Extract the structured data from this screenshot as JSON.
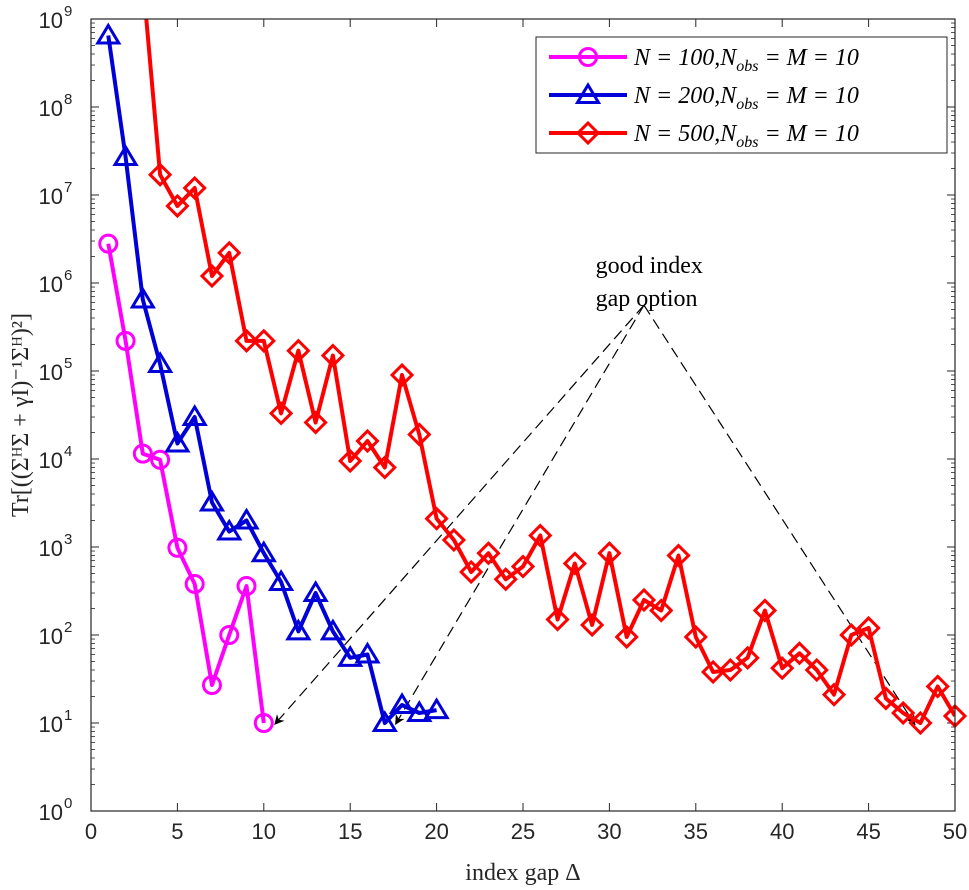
{
  "chart_data": {
    "type": "line",
    "xlabel": "index gap Δ",
    "ylabel": "Tr[((ΣᴴΣ + γI)⁻¹Σᴴ)²]",
    "xlim": [
      0,
      50
    ],
    "ylim": [
      1,
      1000000000
    ],
    "yscale": "log",
    "xticks": [
      0,
      5,
      10,
      15,
      20,
      25,
      30,
      35,
      40,
      45,
      50
    ],
    "xtick_labels": [
      "0",
      "5",
      "10",
      "15",
      "20",
      "25",
      "30",
      "35",
      "40",
      "45",
      "50"
    ],
    "yticks": [
      {
        "value": 1,
        "base": "10",
        "exp": "0"
      },
      {
        "value": 10,
        "base": "10",
        "exp": "1"
      },
      {
        "value": 100,
        "base": "10",
        "exp": "2"
      },
      {
        "value": 1000,
        "base": "10",
        "exp": "3"
      },
      {
        "value": 10000,
        "base": "10",
        "exp": "4"
      },
      {
        "value": 100000,
        "base": "10",
        "exp": "5"
      },
      {
        "value": 1000000,
        "base": "10",
        "exp": "6"
      },
      {
        "value": 10000000,
        "base": "10",
        "exp": "7"
      },
      {
        "value": 100000000,
        "base": "10",
        "exp": "8"
      },
      {
        "value": 1000000000,
        "base": "10",
        "exp": "9"
      }
    ],
    "legend_position": "top-right",
    "series": [
      {
        "name": "N = 100,Nobs = M = 10",
        "label_main": "N = 100,N",
        "label_sub": "obs",
        "label_tail": " = M = 10",
        "color": "#FF00FF",
        "marker": "circle",
        "x": [
          1,
          2,
          3,
          4,
          5,
          6,
          7,
          8,
          9,
          10
        ],
        "values": [
          2800000,
          220000,
          11500,
          9800,
          980,
          380,
          27,
          100,
          360,
          10
        ]
      },
      {
        "name": "N = 200,Nobs = M = 10",
        "label_main": "N = 200,N",
        "label_sub": "obs",
        "label_tail": " = M = 10",
        "color": "#0000D8",
        "marker": "triangle",
        "x": [
          1,
          2,
          3,
          4,
          5,
          6,
          7,
          8,
          9,
          10,
          11,
          12,
          13,
          14,
          15,
          16,
          17,
          18,
          19,
          20
        ],
        "values": [
          650000000,
          27000000,
          650000,
          120000,
          15000,
          30000,
          3200,
          1500,
          2000,
          850,
          400,
          110,
          300,
          110,
          55,
          60,
          10,
          16,
          13,
          14
        ]
      },
      {
        "name": "N = 500,Nobs = M = 10",
        "label_main": "N = 500,N",
        "label_sub": "obs",
        "label_tail": " = M = 10",
        "color": "#FF0000",
        "marker": "diamond",
        "line_start": [
          3.2,
          1000000000
        ],
        "x": [
          4,
          5,
          6,
          7,
          8,
          9,
          10,
          11,
          12,
          13,
          14,
          15,
          16,
          17,
          18,
          19,
          20,
          21,
          22,
          23,
          24,
          25,
          26,
          27,
          28,
          29,
          30,
          31,
          32,
          33,
          34,
          35,
          36,
          37,
          38,
          39,
          40,
          41,
          42,
          43,
          44,
          45,
          46,
          47,
          48,
          49,
          50
        ],
        "values": [
          17000000,
          7500000,
          12000000,
          1200000,
          2200000,
          220000,
          220000,
          33000,
          170000,
          26000,
          150000,
          9500,
          16000,
          8000,
          90000,
          19000,
          2100,
          1200,
          520,
          850,
          430,
          600,
          1350,
          150,
          650,
          130,
          850,
          95,
          250,
          190,
          800,
          95,
          38,
          40,
          55,
          190,
          42,
          62,
          40,
          21,
          100,
          120,
          19,
          13,
          10,
          26,
          12
        ]
      }
    ],
    "annotations": [
      {
        "lines": [
          "good index",
          "gap option"
        ],
        "text_anchor": [
          29.2,
          1300000
        ],
        "arrow_origin": [
          32,
          560000
        ],
        "arrow_targets": [
          [
            10.6,
            9.5
          ],
          [
            17.6,
            9.5
          ],
          [
            47.7,
            9.5
          ]
        ]
      }
    ]
  }
}
